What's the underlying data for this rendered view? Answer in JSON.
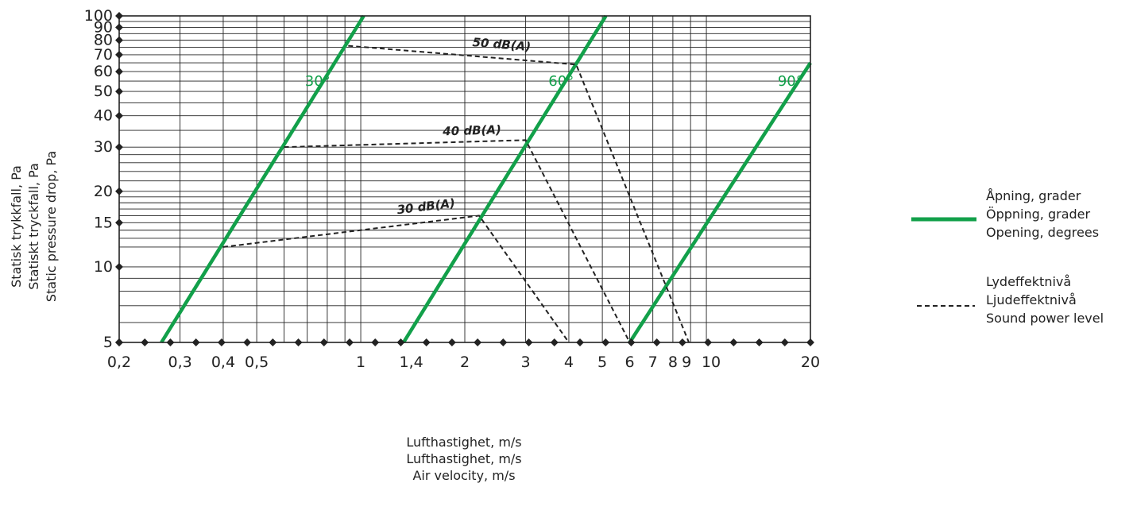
{
  "chart_data": {
    "type": "line",
    "x_scale": "log",
    "y_scale": "log",
    "xlim": [
      0.2,
      20
    ],
    "ylim": [
      5,
      100
    ],
    "grid": true,
    "x_ticks": [
      {
        "value": 0.2,
        "label": "0,2"
      },
      {
        "value": 0.3,
        "label": "0,3"
      },
      {
        "value": 0.4,
        "label": "0,4"
      },
      {
        "value": 0.5,
        "label": "0,5"
      },
      {
        "value": 1,
        "label": "1"
      },
      {
        "value": 1.4,
        "label": "1,4"
      },
      {
        "value": 2,
        "label": "2"
      },
      {
        "value": 3,
        "label": "3"
      },
      {
        "value": 4,
        "label": "4"
      },
      {
        "value": 5,
        "label": "5"
      },
      {
        "value": 6,
        "label": "6"
      },
      {
        "value": 7,
        "label": "7"
      },
      {
        "value": 8,
        "label": "8"
      },
      {
        "value": 9,
        "label": "9"
      },
      {
        "value": 10,
        "label": "10"
      },
      {
        "value": 20,
        "label": "20"
      }
    ],
    "y_ticks": [
      {
        "value": 5,
        "label": "5"
      },
      {
        "value": 10,
        "label": "10"
      },
      {
        "value": 15,
        "label": "15"
      },
      {
        "value": 20,
        "label": "20"
      },
      {
        "value": 30,
        "label": "30"
      },
      {
        "value": 40,
        "label": "40"
      },
      {
        "value": 50,
        "label": "50"
      },
      {
        "value": 60,
        "label": "60"
      },
      {
        "value": 70,
        "label": "70"
      },
      {
        "value": 80,
        "label": "80"
      },
      {
        "value": 90,
        "label": "90"
      },
      {
        "value": 100,
        "label": "100"
      }
    ],
    "xlabel": [
      "Lufthastighet, m/s",
      "Lufthastighet, m/s",
      "Air velocity, m/s"
    ],
    "ylabel": [
      "Statisk trykkfall, Pa",
      "Statiskt tryckfall, Pa",
      "Static pressure drop, Pa"
    ],
    "opening_series": [
      {
        "name": "30°",
        "color": "#12a04a",
        "points": [
          [
            0.265,
            5
          ],
          [
            1.02,
            100
          ]
        ],
        "label_at": [
          0.75,
          55
        ]
      },
      {
        "name": "60°",
        "color": "#12a04a",
        "points": [
          [
            1.33,
            5
          ],
          [
            5.12,
            100
          ]
        ],
        "label_at": [
          3.8,
          55
        ]
      },
      {
        "name": "90°",
        "color": "#12a04a",
        "points": [
          [
            6.0,
            5
          ],
          [
            20,
            65
          ]
        ],
        "label_at": [
          17.5,
          55
        ]
      }
    ],
    "sound_series": [
      {
        "name": "30 dB(A)",
        "points": [
          [
            0.4,
            12
          ],
          [
            2.2,
            16
          ],
          [
            4.0,
            5
          ]
        ],
        "label_at": [
          1.55,
          16.3
        ]
      },
      {
        "name": "40 dB(A)",
        "points": [
          [
            0.6,
            30
          ],
          [
            3.0,
            32
          ],
          [
            6.0,
            5
          ]
        ],
        "label_at": [
          2.1,
          32.7
        ]
      },
      {
        "name": "50 dB(A)",
        "points": [
          [
            0.92,
            76
          ],
          [
            4.2,
            64
          ],
          [
            8.9,
            5
          ]
        ],
        "label_at": [
          2.55,
          72
        ]
      }
    ],
    "legend": {
      "placement": "right",
      "items": [
        {
          "style": "solid-green",
          "lines": [
            "Åpning, grader",
            "Öppning, grader",
            "Opening, degrees"
          ]
        },
        {
          "style": "dashed-black",
          "lines": [
            "Lydeffektnivå",
            "Ljudeffektnivå",
            "Sound power level"
          ]
        }
      ]
    }
  }
}
